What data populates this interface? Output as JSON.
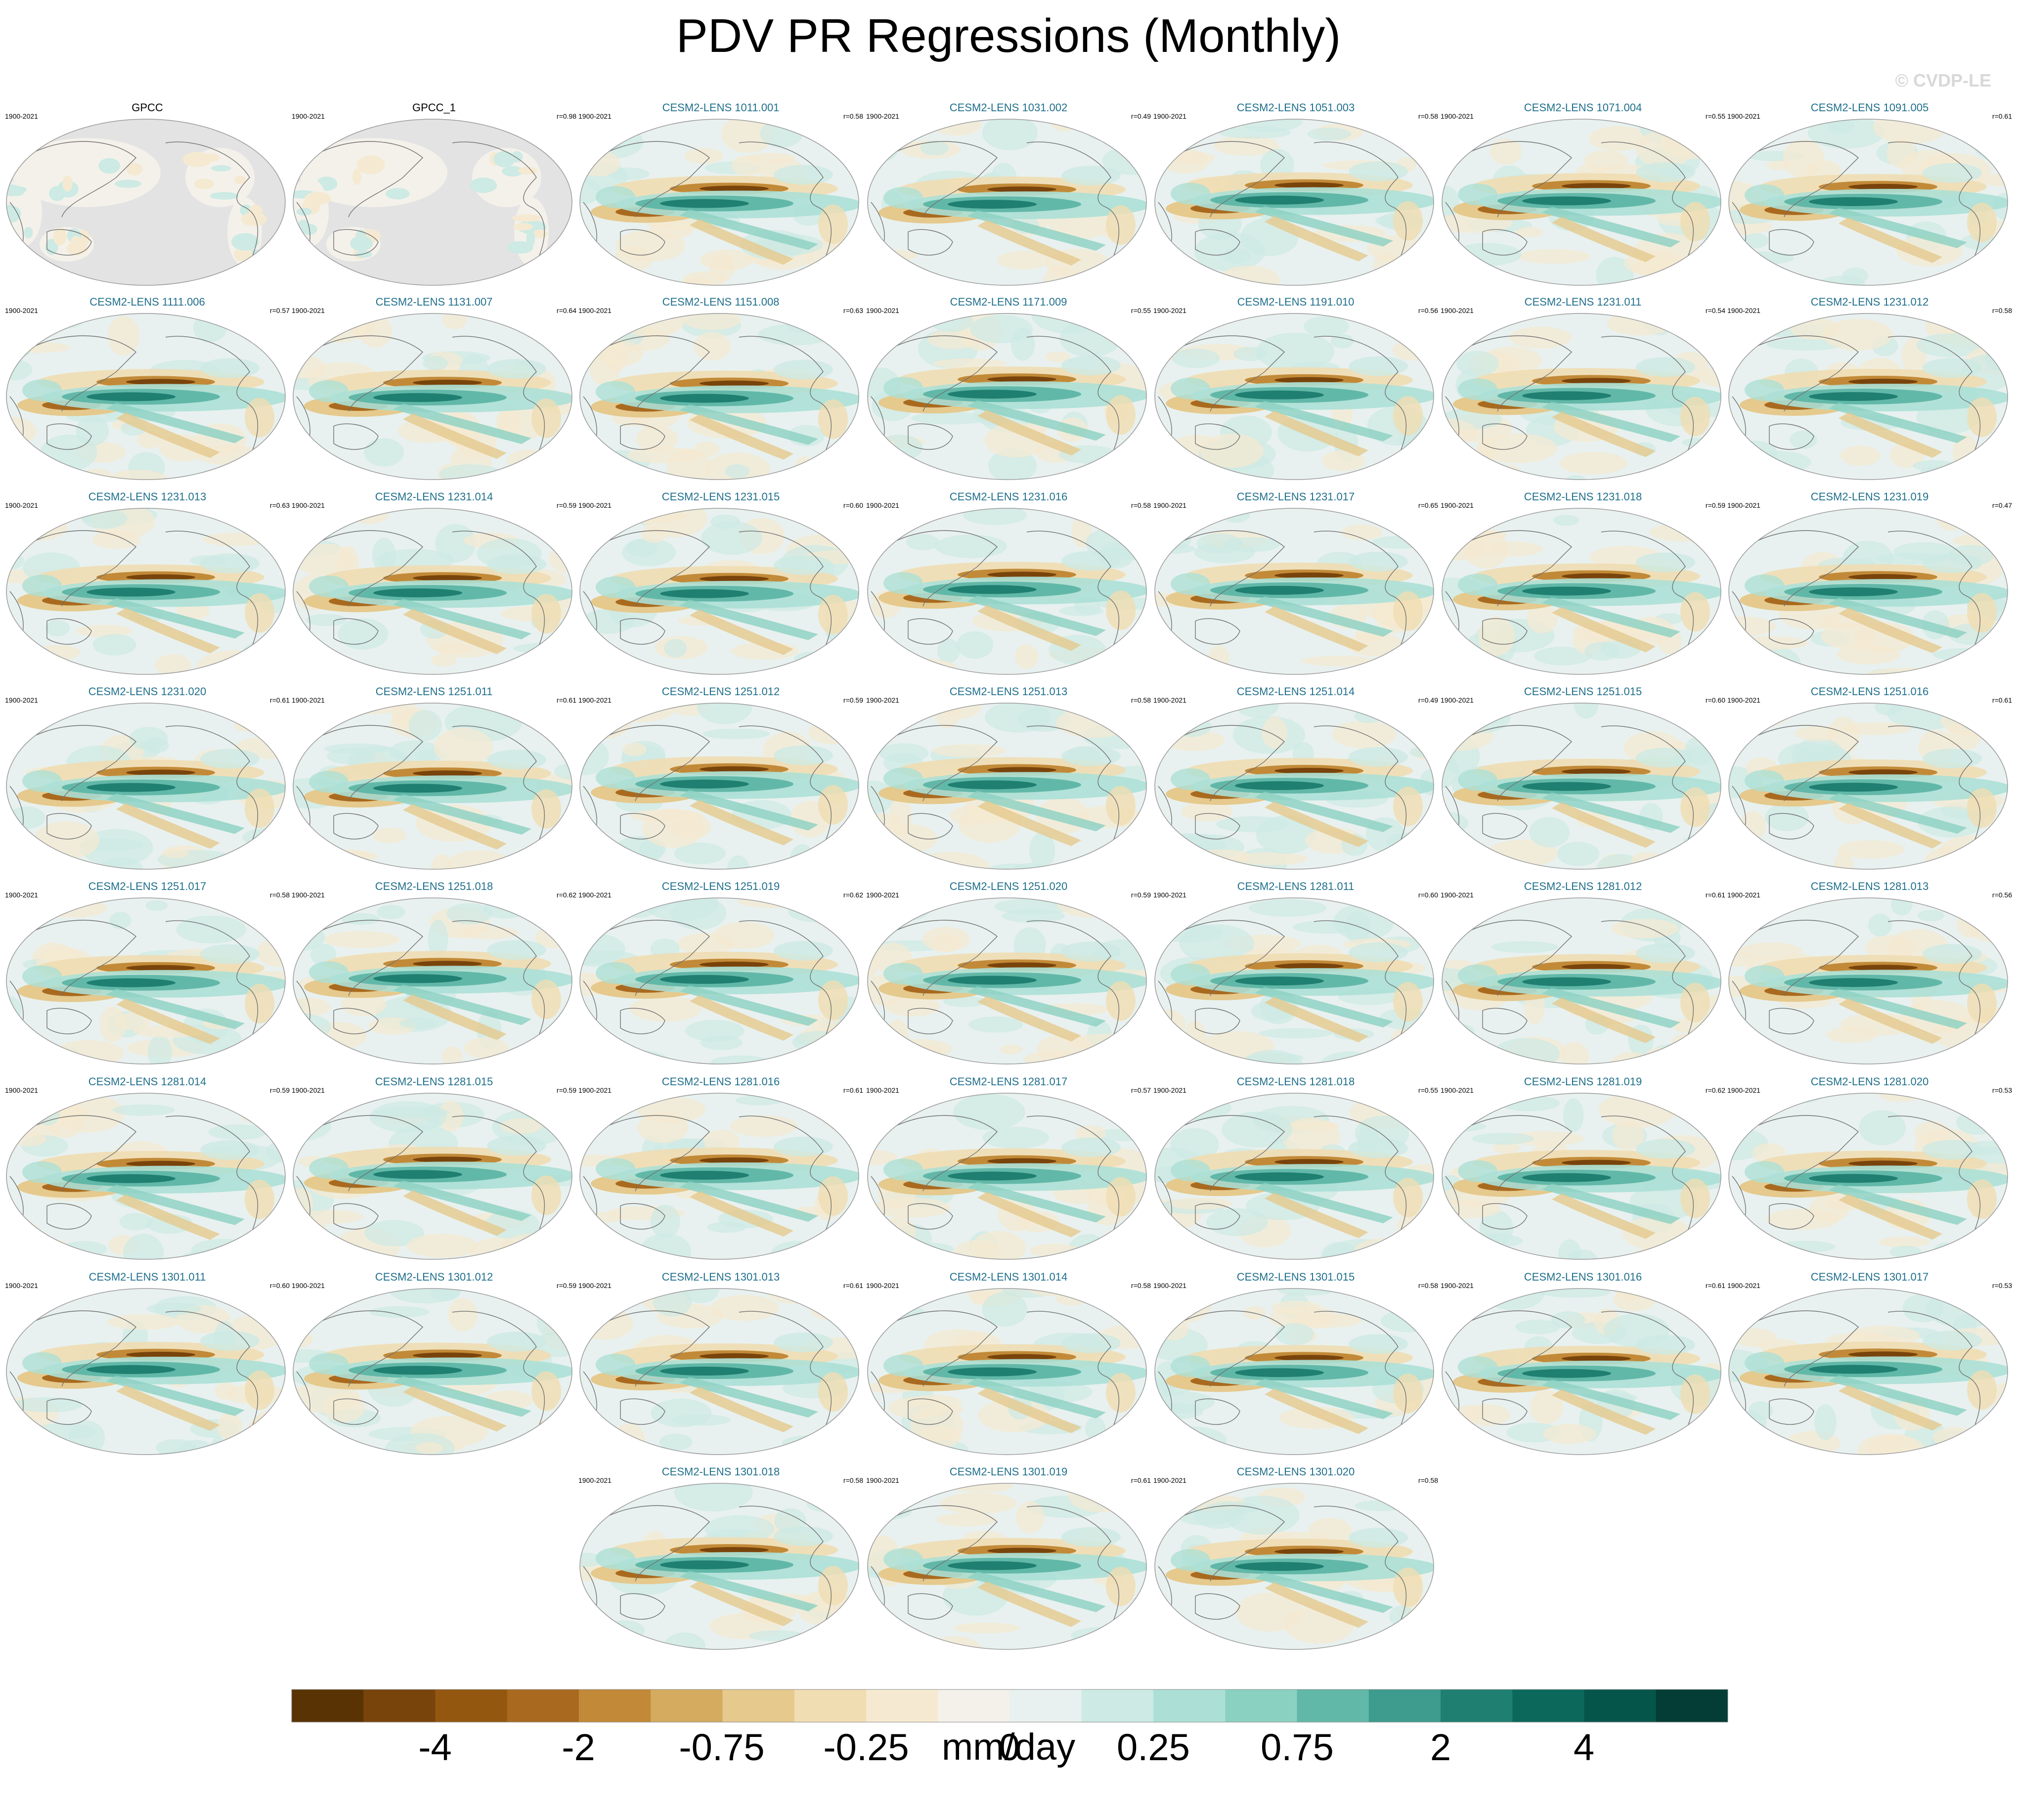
{
  "title": "PDV PR Regressions (Monthly)",
  "watermark": "© CVDP-LE",
  "colors": {
    "obs_label": "#000000",
    "model_label": "#1f6f8b",
    "land_missing": "#e3e3e3",
    "coast": "#707070"
  },
  "panels": [
    {
      "label": "GPCC",
      "period": "1900-2021",
      "r": "",
      "kind": "obs"
    },
    {
      "label": "GPCC_1",
      "period": "1900-2021",
      "r": "r=0.98",
      "kind": "obs"
    },
    {
      "label": "CESM2-LENS 1011.001",
      "period": "1900-2021",
      "r": "r=0.58",
      "kind": "model"
    },
    {
      "label": "CESM2-LENS 1031.002",
      "period": "1900-2021",
      "r": "r=0.49",
      "kind": "model"
    },
    {
      "label": "CESM2-LENS 1051.003",
      "period": "1900-2021",
      "r": "r=0.58",
      "kind": "model"
    },
    {
      "label": "CESM2-LENS 1071.004",
      "period": "1900-2021",
      "r": "r=0.55",
      "kind": "model"
    },
    {
      "label": "CESM2-LENS 1091.005",
      "period": "1900-2021",
      "r": "r=0.61",
      "kind": "model"
    },
    {
      "label": "CESM2-LENS 1111.006",
      "period": "1900-2021",
      "r": "r=0.57",
      "kind": "model"
    },
    {
      "label": "CESM2-LENS 1131.007",
      "period": "1900-2021",
      "r": "r=0.64",
      "kind": "model"
    },
    {
      "label": "CESM2-LENS 1151.008",
      "period": "1900-2021",
      "r": "r=0.63",
      "kind": "model"
    },
    {
      "label": "CESM2-LENS 1171.009",
      "period": "1900-2021",
      "r": "r=0.55",
      "kind": "model"
    },
    {
      "label": "CESM2-LENS 1191.010",
      "period": "1900-2021",
      "r": "r=0.56",
      "kind": "model"
    },
    {
      "label": "CESM2-LENS 1231.011",
      "period": "1900-2021",
      "r": "r=0.54",
      "kind": "model"
    },
    {
      "label": "CESM2-LENS 1231.012",
      "period": "1900-2021",
      "r": "r=0.58",
      "kind": "model"
    },
    {
      "label": "CESM2-LENS 1231.013",
      "period": "1900-2021",
      "r": "r=0.63",
      "kind": "model"
    },
    {
      "label": "CESM2-LENS 1231.014",
      "period": "1900-2021",
      "r": "r=0.59",
      "kind": "model"
    },
    {
      "label": "CESM2-LENS 1231.015",
      "period": "1900-2021",
      "r": "r=0.60",
      "kind": "model"
    },
    {
      "label": "CESM2-LENS 1231.016",
      "period": "1900-2021",
      "r": "r=0.58",
      "kind": "model"
    },
    {
      "label": "CESM2-LENS 1231.017",
      "period": "1900-2021",
      "r": "r=0.65",
      "kind": "model"
    },
    {
      "label": "CESM2-LENS 1231.018",
      "period": "1900-2021",
      "r": "r=0.59",
      "kind": "model"
    },
    {
      "label": "CESM2-LENS 1231.019",
      "period": "1900-2021",
      "r": "r=0.47",
      "kind": "model"
    },
    {
      "label": "CESM2-LENS 1231.020",
      "period": "1900-2021",
      "r": "r=0.61",
      "kind": "model"
    },
    {
      "label": "CESM2-LENS 1251.011",
      "period": "1900-2021",
      "r": "r=0.61",
      "kind": "model"
    },
    {
      "label": "CESM2-LENS 1251.012",
      "period": "1900-2021",
      "r": "r=0.59",
      "kind": "model"
    },
    {
      "label": "CESM2-LENS 1251.013",
      "period": "1900-2021",
      "r": "r=0.58",
      "kind": "model"
    },
    {
      "label": "CESM2-LENS 1251.014",
      "period": "1900-2021",
      "r": "r=0.49",
      "kind": "model"
    },
    {
      "label": "CESM2-LENS 1251.015",
      "period": "1900-2021",
      "r": "r=0.60",
      "kind": "model"
    },
    {
      "label": "CESM2-LENS 1251.016",
      "period": "1900-2021",
      "r": "r=0.61",
      "kind": "model"
    },
    {
      "label": "CESM2-LENS 1251.017",
      "period": "1900-2021",
      "r": "r=0.58",
      "kind": "model"
    },
    {
      "label": "CESM2-LENS 1251.018",
      "period": "1900-2021",
      "r": "r=0.62",
      "kind": "model"
    },
    {
      "label": "CESM2-LENS 1251.019",
      "period": "1900-2021",
      "r": "r=0.62",
      "kind": "model"
    },
    {
      "label": "CESM2-LENS 1251.020",
      "period": "1900-2021",
      "r": "r=0.59",
      "kind": "model"
    },
    {
      "label": "CESM2-LENS 1281.011",
      "period": "1900-2021",
      "r": "r=0.60",
      "kind": "model"
    },
    {
      "label": "CESM2-LENS 1281.012",
      "period": "1900-2021",
      "r": "r=0.61",
      "kind": "model"
    },
    {
      "label": "CESM2-LENS 1281.013",
      "period": "1900-2021",
      "r": "r=0.56",
      "kind": "model"
    },
    {
      "label": "CESM2-LENS 1281.014",
      "period": "1900-2021",
      "r": "r=0.59",
      "kind": "model"
    },
    {
      "label": "CESM2-LENS 1281.015",
      "period": "1900-2021",
      "r": "r=0.59",
      "kind": "model"
    },
    {
      "label": "CESM2-LENS 1281.016",
      "period": "1900-2021",
      "r": "r=0.61",
      "kind": "model"
    },
    {
      "label": "CESM2-LENS 1281.017",
      "period": "1900-2021",
      "r": "r=0.57",
      "kind": "model"
    },
    {
      "label": "CESM2-LENS 1281.018",
      "period": "1900-2021",
      "r": "r=0.55",
      "kind": "model"
    },
    {
      "label": "CESM2-LENS 1281.019",
      "period": "1900-2021",
      "r": "r=0.62",
      "kind": "model"
    },
    {
      "label": "CESM2-LENS 1281.020",
      "period": "1900-2021",
      "r": "r=0.53",
      "kind": "model"
    },
    {
      "label": "CESM2-LENS 1301.011",
      "period": "1900-2021",
      "r": "r=0.60",
      "kind": "model"
    },
    {
      "label": "CESM2-LENS 1301.012",
      "period": "1900-2021",
      "r": "r=0.59",
      "kind": "model"
    },
    {
      "label": "CESM2-LENS 1301.013",
      "period": "1900-2021",
      "r": "r=0.61",
      "kind": "model"
    },
    {
      "label": "CESM2-LENS 1301.014",
      "period": "1900-2021",
      "r": "r=0.58",
      "kind": "model"
    },
    {
      "label": "CESM2-LENS 1301.015",
      "period": "1900-2021",
      "r": "r=0.58",
      "kind": "model"
    },
    {
      "label": "CESM2-LENS 1301.016",
      "period": "1900-2021",
      "r": "r=0.61",
      "kind": "model"
    },
    {
      "label": "CESM2-LENS 1301.017",
      "period": "1900-2021",
      "r": "r=0.53",
      "kind": "model"
    },
    {
      "label": "CESM2-LENS 1301.018",
      "period": "1900-2021",
      "r": "r=0.58",
      "kind": "model"
    },
    {
      "label": "CESM2-LENS 1301.019",
      "period": "1900-2021",
      "r": "r=0.61",
      "kind": "model"
    },
    {
      "label": "CESM2-LENS 1301.020",
      "period": "1900-2021",
      "r": "r=0.58",
      "kind": "model"
    }
  ],
  "colorbar": {
    "unit": "mm/day",
    "tick_labels": [
      "-4",
      "-2",
      "-0.75",
      "-0.25",
      "0",
      "0.25",
      "0.75",
      "2",
      "4"
    ],
    "colors": [
      "#5a3305",
      "#79440b",
      "#935710",
      "#a96a1f",
      "#c28a38",
      "#d4ab5f",
      "#e5c98d",
      "#f0ddb2",
      "#f5ead1",
      "#f4f1eb",
      "#e8f1ef",
      "#cdeae4",
      "#ace0d6",
      "#8bd1c2",
      "#62b8a8",
      "#3d9c8e",
      "#1f7f71",
      "#0b685b",
      "#06554b",
      "#033d35"
    ]
  }
}
